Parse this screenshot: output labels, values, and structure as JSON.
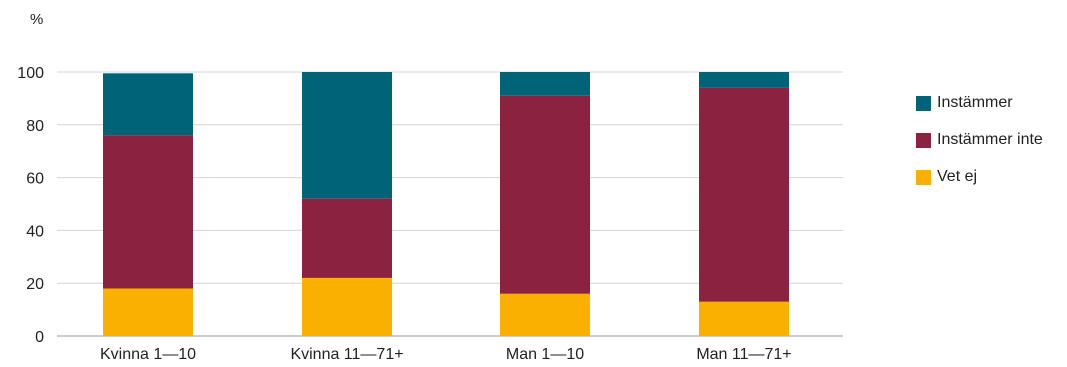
{
  "chart_data": {
    "type": "bar",
    "stacked": true,
    "y_unit": "%",
    "ylim": [
      0,
      100
    ],
    "yticks": [
      0,
      20,
      40,
      60,
      80,
      100
    ],
    "grid": true,
    "legend_position": "right",
    "categories": [
      "Kvinna 1—10",
      "Kvinna 11—71+",
      "Man 1—10",
      "Man 11—71+"
    ],
    "series": [
      {
        "name": "Vet ej",
        "color": "#f9b000",
        "values": [
          18,
          22,
          16,
          13
        ]
      },
      {
        "name": "Instämmer inte",
        "color": "#8b2340",
        "values": [
          58,
          30,
          75,
          81
        ]
      },
      {
        "name": "Instämmer",
        "color": "#006378",
        "values": [
          23.5,
          48,
          9,
          6
        ]
      }
    ],
    "legend_order": [
      "Instämmer",
      "Instämmer inte",
      "Vet ej"
    ]
  }
}
